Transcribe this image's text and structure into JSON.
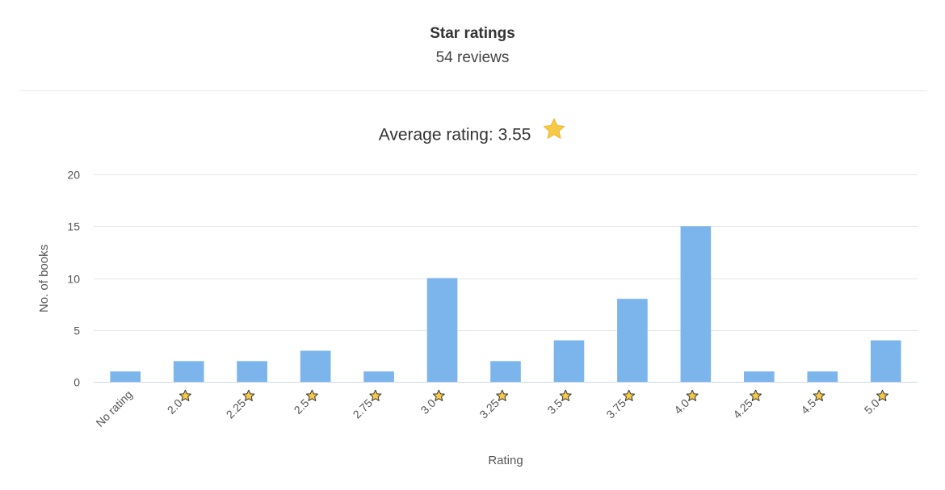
{
  "header": {
    "title": "Star ratings",
    "subtitle": "54 reviews"
  },
  "average": {
    "text": "Average rating: 3.55",
    "icon": "star-icon"
  },
  "colors": {
    "bar": "#7cb5ec",
    "star_fill": "#f7c948",
    "star_stroke": "#333333",
    "grid": "#e6e6e6"
  },
  "chart_data": {
    "type": "bar",
    "xlabel": "Rating",
    "ylabel": "No. of books",
    "ylim": [
      0,
      20
    ],
    "yticks": [
      0,
      5,
      10,
      15,
      20
    ],
    "grid": true,
    "categories": [
      "No rating",
      "2.0",
      "2.25",
      "2.5",
      "2.75",
      "3.0",
      "3.25",
      "3.5",
      "3.75",
      "4.0",
      "4.25",
      "4.5",
      "5.0"
    ],
    "category_star_icons": [
      false,
      true,
      true,
      true,
      true,
      true,
      true,
      true,
      true,
      true,
      true,
      true,
      true
    ],
    "values": [
      1,
      2,
      2,
      3,
      1,
      10,
      2,
      4,
      8,
      15,
      1,
      1,
      4
    ]
  }
}
